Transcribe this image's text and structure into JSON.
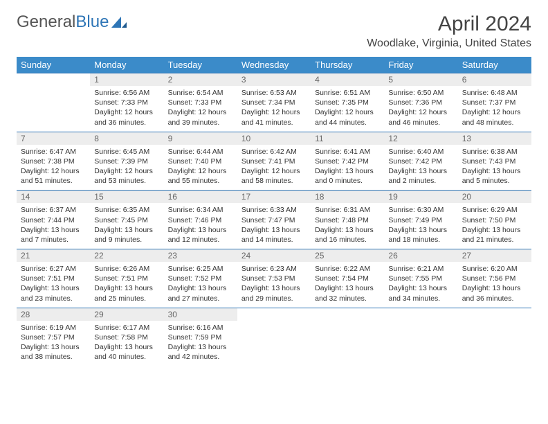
{
  "logo": {
    "text1": "General",
    "text2": "Blue"
  },
  "title": "April 2024",
  "location": "Woodlake, Virginia, United States",
  "weekdays": [
    "Sunday",
    "Monday",
    "Tuesday",
    "Wednesday",
    "Thursday",
    "Friday",
    "Saturday"
  ],
  "colors": {
    "header_bg": "#3b8bc9",
    "daynum_bg": "#ededed",
    "rule": "#2e75b6",
    "text": "#333333",
    "logo_gray": "#555555",
    "logo_blue": "#2e75b6"
  },
  "fonts": {
    "title_size": 30,
    "location_size": 16,
    "weekday_size": 13,
    "daynum_size": 12,
    "cell_size": 10.5
  },
  "weeks": [
    [
      null,
      {
        "n": "1",
        "sr": "Sunrise: 6:56 AM",
        "ss": "Sunset: 7:33 PM",
        "d1": "Daylight: 12 hours",
        "d2": "and 36 minutes."
      },
      {
        "n": "2",
        "sr": "Sunrise: 6:54 AM",
        "ss": "Sunset: 7:33 PM",
        "d1": "Daylight: 12 hours",
        "d2": "and 39 minutes."
      },
      {
        "n": "3",
        "sr": "Sunrise: 6:53 AM",
        "ss": "Sunset: 7:34 PM",
        "d1": "Daylight: 12 hours",
        "d2": "and 41 minutes."
      },
      {
        "n": "4",
        "sr": "Sunrise: 6:51 AM",
        "ss": "Sunset: 7:35 PM",
        "d1": "Daylight: 12 hours",
        "d2": "and 44 minutes."
      },
      {
        "n": "5",
        "sr": "Sunrise: 6:50 AM",
        "ss": "Sunset: 7:36 PM",
        "d1": "Daylight: 12 hours",
        "d2": "and 46 minutes."
      },
      {
        "n": "6",
        "sr": "Sunrise: 6:48 AM",
        "ss": "Sunset: 7:37 PM",
        "d1": "Daylight: 12 hours",
        "d2": "and 48 minutes."
      }
    ],
    [
      {
        "n": "7",
        "sr": "Sunrise: 6:47 AM",
        "ss": "Sunset: 7:38 PM",
        "d1": "Daylight: 12 hours",
        "d2": "and 51 minutes."
      },
      {
        "n": "8",
        "sr": "Sunrise: 6:45 AM",
        "ss": "Sunset: 7:39 PM",
        "d1": "Daylight: 12 hours",
        "d2": "and 53 minutes."
      },
      {
        "n": "9",
        "sr": "Sunrise: 6:44 AM",
        "ss": "Sunset: 7:40 PM",
        "d1": "Daylight: 12 hours",
        "d2": "and 55 minutes."
      },
      {
        "n": "10",
        "sr": "Sunrise: 6:42 AM",
        "ss": "Sunset: 7:41 PM",
        "d1": "Daylight: 12 hours",
        "d2": "and 58 minutes."
      },
      {
        "n": "11",
        "sr": "Sunrise: 6:41 AM",
        "ss": "Sunset: 7:42 PM",
        "d1": "Daylight: 13 hours",
        "d2": "and 0 minutes."
      },
      {
        "n": "12",
        "sr": "Sunrise: 6:40 AM",
        "ss": "Sunset: 7:42 PM",
        "d1": "Daylight: 13 hours",
        "d2": "and 2 minutes."
      },
      {
        "n": "13",
        "sr": "Sunrise: 6:38 AM",
        "ss": "Sunset: 7:43 PM",
        "d1": "Daylight: 13 hours",
        "d2": "and 5 minutes."
      }
    ],
    [
      {
        "n": "14",
        "sr": "Sunrise: 6:37 AM",
        "ss": "Sunset: 7:44 PM",
        "d1": "Daylight: 13 hours",
        "d2": "and 7 minutes."
      },
      {
        "n": "15",
        "sr": "Sunrise: 6:35 AM",
        "ss": "Sunset: 7:45 PM",
        "d1": "Daylight: 13 hours",
        "d2": "and 9 minutes."
      },
      {
        "n": "16",
        "sr": "Sunrise: 6:34 AM",
        "ss": "Sunset: 7:46 PM",
        "d1": "Daylight: 13 hours",
        "d2": "and 12 minutes."
      },
      {
        "n": "17",
        "sr": "Sunrise: 6:33 AM",
        "ss": "Sunset: 7:47 PM",
        "d1": "Daylight: 13 hours",
        "d2": "and 14 minutes."
      },
      {
        "n": "18",
        "sr": "Sunrise: 6:31 AM",
        "ss": "Sunset: 7:48 PM",
        "d1": "Daylight: 13 hours",
        "d2": "and 16 minutes."
      },
      {
        "n": "19",
        "sr": "Sunrise: 6:30 AM",
        "ss": "Sunset: 7:49 PM",
        "d1": "Daylight: 13 hours",
        "d2": "and 18 minutes."
      },
      {
        "n": "20",
        "sr": "Sunrise: 6:29 AM",
        "ss": "Sunset: 7:50 PM",
        "d1": "Daylight: 13 hours",
        "d2": "and 21 minutes."
      }
    ],
    [
      {
        "n": "21",
        "sr": "Sunrise: 6:27 AM",
        "ss": "Sunset: 7:51 PM",
        "d1": "Daylight: 13 hours",
        "d2": "and 23 minutes."
      },
      {
        "n": "22",
        "sr": "Sunrise: 6:26 AM",
        "ss": "Sunset: 7:51 PM",
        "d1": "Daylight: 13 hours",
        "d2": "and 25 minutes."
      },
      {
        "n": "23",
        "sr": "Sunrise: 6:25 AM",
        "ss": "Sunset: 7:52 PM",
        "d1": "Daylight: 13 hours",
        "d2": "and 27 minutes."
      },
      {
        "n": "24",
        "sr": "Sunrise: 6:23 AM",
        "ss": "Sunset: 7:53 PM",
        "d1": "Daylight: 13 hours",
        "d2": "and 29 minutes."
      },
      {
        "n": "25",
        "sr": "Sunrise: 6:22 AM",
        "ss": "Sunset: 7:54 PM",
        "d1": "Daylight: 13 hours",
        "d2": "and 32 minutes."
      },
      {
        "n": "26",
        "sr": "Sunrise: 6:21 AM",
        "ss": "Sunset: 7:55 PM",
        "d1": "Daylight: 13 hours",
        "d2": "and 34 minutes."
      },
      {
        "n": "27",
        "sr": "Sunrise: 6:20 AM",
        "ss": "Sunset: 7:56 PM",
        "d1": "Daylight: 13 hours",
        "d2": "and 36 minutes."
      }
    ],
    [
      {
        "n": "28",
        "sr": "Sunrise: 6:19 AM",
        "ss": "Sunset: 7:57 PM",
        "d1": "Daylight: 13 hours",
        "d2": "and 38 minutes."
      },
      {
        "n": "29",
        "sr": "Sunrise: 6:17 AM",
        "ss": "Sunset: 7:58 PM",
        "d1": "Daylight: 13 hours",
        "d2": "and 40 minutes."
      },
      {
        "n": "30",
        "sr": "Sunrise: 6:16 AM",
        "ss": "Sunset: 7:59 PM",
        "d1": "Daylight: 13 hours",
        "d2": "and 42 minutes."
      },
      null,
      null,
      null,
      null
    ]
  ]
}
